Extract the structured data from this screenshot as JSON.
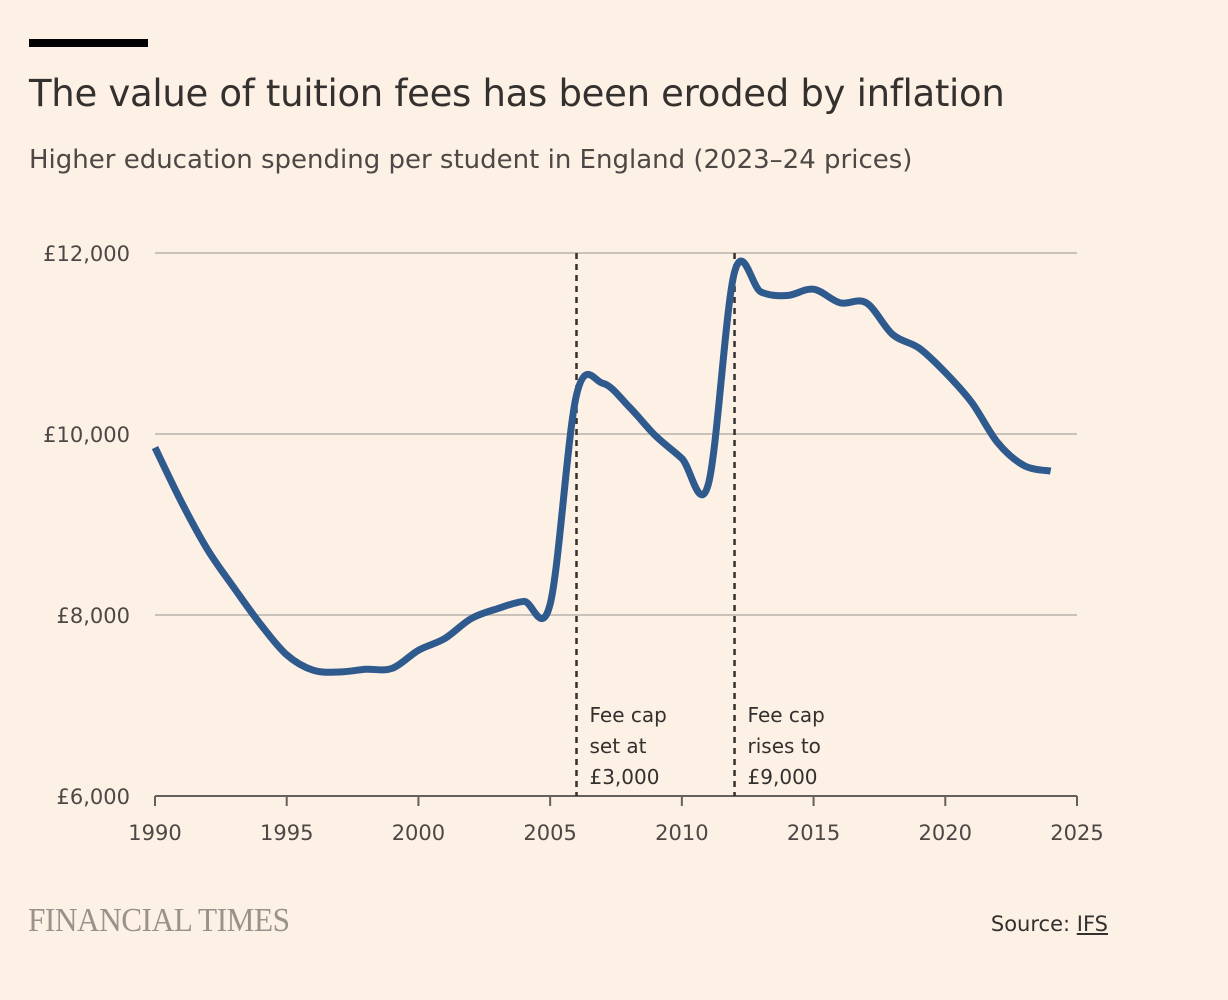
{
  "header": {
    "title": "The value of tuition fees has been eroded by inflation",
    "subtitle": "Higher education spending per student in England (2023–24 prices)"
  },
  "footer": {
    "logo": "FINANCIAL TIMES",
    "source_label": "Source: ",
    "source_link": "IFS"
  },
  "colors": {
    "line": "#2f5a8e",
    "background": "#fdf0e5",
    "grid": "#c9c2bb"
  },
  "chart_data": {
    "type": "line",
    "title": "The value of tuition fees has been eroded by inflation",
    "subtitle": "Higher education spending per student in England (2023–24 prices)",
    "xlabel": "",
    "ylabel": "",
    "xlim": [
      1990,
      2025
    ],
    "ylim": [
      6000,
      12000
    ],
    "xticks": [
      1990,
      1995,
      2000,
      2005,
      2010,
      2015,
      2020,
      2025
    ],
    "xtick_labels": [
      "1990",
      "1995",
      "2000",
      "2005",
      "2010",
      "2015",
      "2020",
      "2025"
    ],
    "yticks": [
      6000,
      8000,
      10000,
      12000
    ],
    "ytick_labels": [
      "£6,000",
      "£8,000",
      "£10,000",
      "£12,000"
    ],
    "grid": true,
    "series": [
      {
        "name": "Spending per student",
        "x": [
          1990,
          1991,
          1992,
          1993,
          1994,
          1995,
          1996,
          1997,
          1998,
          1999,
          2000,
          2001,
          2002,
          2003,
          2004,
          2005,
          2006,
          2007,
          2008,
          2009,
          2010,
          2011,
          2012,
          2013,
          2014,
          2015,
          2016,
          2017,
          2018,
          2019,
          2020,
          2021,
          2022,
          2023,
          2024
        ],
        "values": [
          9850,
          9250,
          8720,
          8300,
          7900,
          7560,
          7390,
          7370,
          7400,
          7410,
          7610,
          7740,
          7960,
          8070,
          8150,
          8120,
          10430,
          10560,
          10300,
          9980,
          9730,
          9440,
          11790,
          11570,
          11530,
          11600,
          11450,
          11450,
          11100,
          10950,
          10680,
          10350,
          9900,
          9650,
          9590
        ]
      }
    ],
    "annotations": [
      {
        "x": 2006,
        "lines": [
          "Fee cap",
          "set at",
          "£3,000"
        ]
      },
      {
        "x": 2012,
        "lines": [
          "Fee cap",
          "rises to",
          "£9,000"
        ]
      }
    ]
  }
}
